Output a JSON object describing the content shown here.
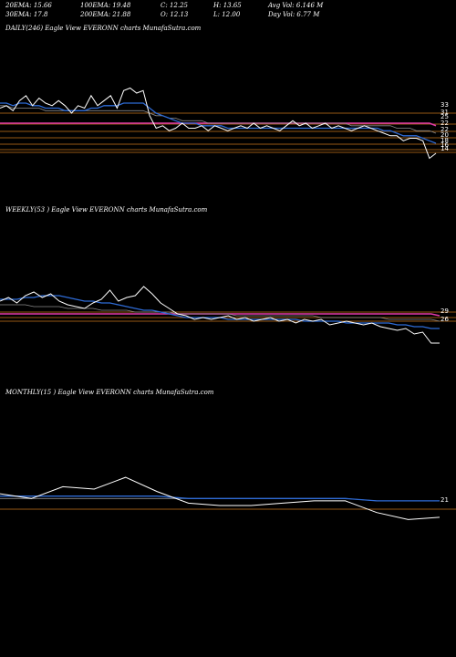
{
  "header": {
    "row1": [
      "20EMA: 15.66",
      "100EMA: 19.48",
      "C: 12.25",
      "H: 13.65",
      "Avg Vol: 6.146  M"
    ],
    "row2": [
      "30EMA: 17.8",
      "200EMA: 21.88",
      "O: 12.13",
      "L: 12.00",
      "Day Vol: 6.77  M"
    ]
  },
  "chart_data": [
    {
      "type": "line",
      "title": "DAILY(246) Eagle   View  EVERONN  charts MunafaSutra.com",
      "yticks": [
        "33",
        "31",
        "25",
        "22",
        "22",
        "20",
        "18",
        "16",
        "14"
      ],
      "price": [
        26,
        27,
        25,
        29,
        31,
        27,
        30,
        28,
        27,
        29,
        27,
        24,
        27,
        26,
        31,
        27,
        29,
        31,
        26,
        33,
        34,
        32,
        33,
        23,
        18,
        19,
        17,
        18,
        20,
        18,
        18,
        19,
        17,
        19,
        18,
        17,
        18,
        19,
        18,
        20,
        18,
        19,
        18,
        17,
        19,
        21,
        19,
        20,
        18,
        19,
        20,
        18,
        19,
        18,
        17,
        18,
        19,
        18,
        17,
        16,
        15,
        15,
        13,
        14,
        14,
        13,
        6,
        8
      ],
      "ema_fast": [
        28,
        28,
        27,
        28,
        28,
        27,
        27,
        26,
        26,
        26,
        25,
        25,
        25,
        25,
        26,
        26,
        27,
        27,
        27,
        28,
        28,
        28,
        28,
        26,
        24,
        23,
        22,
        21,
        20,
        20,
        20,
        19,
        19,
        19,
        19,
        18,
        18,
        18,
        18,
        18,
        18,
        18,
        18,
        18,
        18,
        18,
        18,
        18,
        18,
        18,
        18,
        18,
        18,
        18,
        18,
        18,
        18,
        18,
        18,
        17,
        17,
        16,
        15,
        15,
        15,
        14,
        13,
        12
      ],
      "ema_slow": [
        27,
        27,
        26,
        26,
        26,
        26,
        26,
        25,
        25,
        25,
        25,
        25,
        25,
        25,
        25,
        25,
        25,
        25,
        25,
        25,
        25,
        25,
        25,
        24,
        23,
        23,
        22,
        22,
        21,
        21,
        21,
        21,
        20,
        20,
        20,
        20,
        20,
        20,
        20,
        20,
        20,
        20,
        20,
        20,
        20,
        20,
        20,
        20,
        20,
        20,
        20,
        20,
        20,
        20,
        19,
        19,
        19,
        19,
        19,
        19,
        19,
        18,
        18,
        18,
        17,
        17,
        17,
        16
      ],
      "ma_pink": [
        20,
        20,
        20,
        20,
        20,
        20,
        20,
        20,
        20,
        20,
        20,
        20,
        20,
        20,
        20,
        20,
        20,
        20,
        20,
        20,
        20,
        20,
        20,
        20,
        20,
        20,
        20,
        20,
        20,
        20,
        20,
        20,
        20,
        20,
        20,
        20,
        20,
        20,
        20,
        20,
        20,
        20,
        20,
        20,
        20,
        20,
        20,
        20,
        20,
        20,
        20,
        20,
        20,
        20,
        20,
        20,
        20,
        20,
        20,
        20,
        20,
        20,
        20,
        20,
        20,
        20,
        20,
        19
      ],
      "ylim": [
        0,
        40
      ]
    },
    {
      "type": "line",
      "title": "WEEKLY(53               ) Eagle   View  EVERONN  charts MunafaSutra.com",
      "yticks": [
        "29",
        "26"
      ],
      "price": [
        30,
        32,
        29,
        33,
        35,
        32,
        34,
        30,
        28,
        27,
        26,
        29,
        31,
        36,
        30,
        32,
        33,
        38,
        34,
        29,
        26,
        23,
        22,
        20,
        21,
        20,
        21,
        22,
        20,
        21,
        19,
        20,
        21,
        19,
        20,
        18,
        20,
        19,
        20,
        17,
        18,
        19,
        18,
        17,
        18,
        16,
        15,
        14,
        15,
        12,
        13,
        7,
        7
      ],
      "ema_fast": [
        31,
        31,
        31,
        32,
        32,
        33,
        33,
        33,
        32,
        31,
        30,
        30,
        29,
        29,
        28,
        27,
        26,
        25,
        25,
        24,
        23,
        22,
        21,
        21,
        21,
        21,
        21,
        20,
        20,
        20,
        20,
        20,
        20,
        20,
        20,
        20,
        19,
        19,
        19,
        19,
        19,
        18,
        18,
        18,
        18,
        18,
        18,
        17,
        17,
        16,
        16,
        15,
        15
      ],
      "ema_slow": [
        28,
        28,
        28,
        28,
        27,
        27,
        27,
        27,
        26,
        26,
        26,
        26,
        25,
        25,
        25,
        25,
        24,
        24,
        24,
        24,
        24,
        23,
        23,
        23,
        23,
        23,
        23,
        23,
        22,
        22,
        22,
        22,
        22,
        22,
        22,
        22,
        22,
        22,
        21,
        21,
        21,
        21,
        21,
        21,
        21,
        21,
        20,
        20,
        20,
        20,
        20,
        20,
        19
      ],
      "ma_pink": [
        23,
        23,
        23,
        23,
        23,
        23,
        23,
        23,
        23,
        23,
        23,
        23,
        23,
        23,
        23,
        23,
        23,
        23,
        23,
        23,
        23,
        23,
        23,
        23,
        23,
        23,
        23,
        23,
        23,
        23,
        23,
        23,
        23,
        23,
        23,
        23,
        23,
        23,
        23,
        23,
        23,
        23,
        23,
        23,
        23,
        23,
        23,
        23,
        23,
        23,
        23,
        23,
        22
      ],
      "ylim": [
        0,
        45
      ]
    },
    {
      "type": "line",
      "title": "MONTHLY(15               ) Eagle   View  EVERONN  charts MunafaSutra.com",
      "yticks": [
        "21"
      ],
      "price": [
        24,
        22,
        27,
        26,
        31,
        25,
        20,
        19,
        19,
        20,
        21,
        21,
        16,
        13,
        14
      ],
      "ema_fast": [
        23,
        23,
        23,
        23,
        23,
        23,
        22,
        22,
        22,
        22,
        22,
        22,
        21,
        21,
        21
      ],
      "ema_slow": [
        22,
        22,
        22,
        22,
        22,
        22,
        22,
        22,
        22,
        22,
        22,
        22,
        21,
        21,
        21
      ],
      "ylim": [
        5,
        40
      ]
    }
  ],
  "colors": {
    "background": "#000000",
    "price": "#ffffff",
    "ema_fast": "#2e6bd6",
    "ema_slow": "#8a8a8a",
    "ma_pink": "#e03aa8",
    "level": "#c8741c"
  }
}
